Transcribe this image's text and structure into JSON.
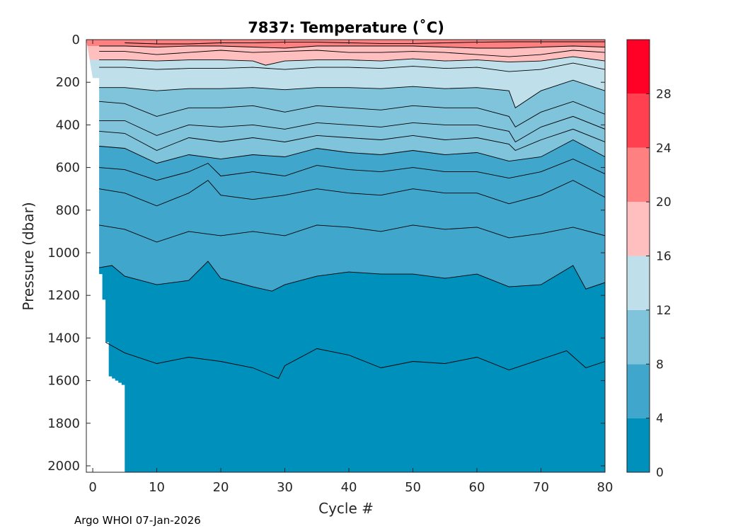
{
  "chart_data": {
    "type": "heatmap",
    "title": "7837:  Temperature (˚C)",
    "xlabel": "Cycle #",
    "ylabel": "Pressure (dbar)",
    "xlim": [
      -1,
      80
    ],
    "ylim": [
      2030,
      0
    ],
    "xticks": [
      0,
      10,
      20,
      30,
      40,
      50,
      60,
      70,
      80
    ],
    "yticks": [
      0,
      200,
      400,
      600,
      800,
      1000,
      1200,
      1400,
      1600,
      1800,
      2000
    ],
    "xtick_labels": [
      "0",
      "10",
      "20",
      "30",
      "40",
      "50",
      "60",
      "70",
      "80"
    ],
    "ytick_labels": [
      "0",
      "200",
      "400",
      "600",
      "800",
      "1000",
      "1200",
      "1400",
      "1600",
      "1800",
      "2000"
    ],
    "colorbar": {
      "range": [
        0,
        32
      ],
      "bins": [
        {
          "from": 0,
          "to": 4,
          "color": "#0090bc"
        },
        {
          "from": 4,
          "to": 8,
          "color": "#40a6cc"
        },
        {
          "from": 8,
          "to": 12,
          "color": "#80c4dc"
        },
        {
          "from": 12,
          "to": 16,
          "color": "#bfe0ea"
        },
        {
          "from": 16,
          "to": 20,
          "color": "#ffbfbf"
        },
        {
          "from": 20,
          "to": 24,
          "color": "#ff8080"
        },
        {
          "from": 24,
          "to": 28,
          "color": "#ff4050"
        },
        {
          "from": 28,
          "to": 32,
          "color": "#ff0026"
        }
      ],
      "ticks": [
        0,
        4,
        8,
        12,
        16,
        20,
        24,
        28
      ],
      "tick_labels": [
        "0",
        "4",
        "8",
        "12",
        "16",
        "20",
        "24",
        "28"
      ]
    },
    "coverage": {
      "cycles": [
        0,
        1,
        1.5,
        2,
        2.5,
        3,
        3.5,
        4,
        4.5,
        5,
        80
      ],
      "max_pressure": [
        180,
        1100,
        1220,
        1420,
        1580,
        1590,
        1600,
        1610,
        1620,
        2030,
        2030
      ]
    },
    "isotherms": [
      {
        "temp": 2,
        "cycles": [
          2,
          5,
          10,
          15,
          20,
          25,
          29,
          30,
          35,
          40,
          45,
          50,
          55,
          60,
          65,
          70,
          74,
          77,
          80
        ],
        "pressure": [
          1420,
          1470,
          1520,
          1490,
          1510,
          1540,
          1590,
          1530,
          1450,
          1480,
          1540,
          1510,
          1520,
          1490,
          1550,
          1500,
          1460,
          1540,
          1510
        ]
      },
      {
        "temp": 4,
        "cycles": [
          1,
          3,
          5,
          10,
          15,
          18,
          20,
          25,
          28,
          30,
          35,
          40,
          45,
          50,
          55,
          60,
          65,
          70,
          75,
          77,
          80
        ],
        "pressure": [
          1070,
          1060,
          1110,
          1150,
          1130,
          1040,
          1120,
          1160,
          1180,
          1150,
          1110,
          1090,
          1100,
          1100,
          1120,
          1100,
          1160,
          1150,
          1060,
          1170,
          1140
        ]
      },
      {
        "temp": 5,
        "cycles": [
          1,
          5,
          10,
          15,
          20,
          25,
          30,
          35,
          40,
          45,
          50,
          55,
          60,
          65,
          70,
          75,
          80
        ],
        "pressure": [
          870,
          890,
          950,
          900,
          920,
          900,
          920,
          870,
          880,
          900,
          870,
          890,
          880,
          930,
          910,
          880,
          920
        ]
      },
      {
        "temp": 6,
        "cycles": [
          1,
          5,
          10,
          15,
          18,
          20,
          25,
          30,
          35,
          40,
          45,
          50,
          55,
          60,
          65,
          70,
          75,
          80
        ],
        "pressure": [
          700,
          720,
          780,
          720,
          660,
          730,
          750,
          730,
          700,
          720,
          730,
          700,
          720,
          720,
          770,
          730,
          660,
          740
        ]
      },
      {
        "temp": 7,
        "cycles": [
          1,
          5,
          10,
          15,
          18,
          20,
          25,
          30,
          35,
          40,
          45,
          50,
          55,
          60,
          65,
          70,
          75,
          80
        ],
        "pressure": [
          600,
          610,
          660,
          620,
          580,
          640,
          620,
          640,
          590,
          610,
          620,
          600,
          620,
          620,
          650,
          620,
          560,
          630
        ]
      },
      {
        "temp": 8,
        "cycles": [
          1,
          5,
          10,
          15,
          20,
          25,
          30,
          35,
          40,
          45,
          50,
          55,
          60,
          65,
          70,
          75,
          80
        ],
        "pressure": [
          500,
          510,
          580,
          540,
          560,
          540,
          550,
          510,
          530,
          540,
          520,
          540,
          530,
          570,
          550,
          470,
          550
        ]
      },
      {
        "temp": 9,
        "cycles": [
          1,
          5,
          10,
          15,
          20,
          25,
          30,
          35,
          40,
          45,
          50,
          55,
          60,
          65,
          66,
          70,
          75,
          80
        ],
        "pressure": [
          430,
          440,
          520,
          460,
          480,
          460,
          480,
          450,
          460,
          470,
          450,
          470,
          460,
          490,
          520,
          470,
          420,
          480
        ]
      },
      {
        "temp": 10,
        "cycles": [
          1,
          5,
          10,
          15,
          20,
          25,
          30,
          35,
          40,
          45,
          50,
          55,
          60,
          65,
          66,
          70,
          75,
          80
        ],
        "pressure": [
          380,
          380,
          450,
          400,
          410,
          400,
          420,
          390,
          400,
          410,
          390,
          400,
          400,
          430,
          480,
          410,
          360,
          420
        ]
      },
      {
        "temp": 11,
        "cycles": [
          1,
          5,
          10,
          15,
          20,
          25,
          30,
          35,
          40,
          45,
          50,
          55,
          60,
          65,
          66,
          70,
          75,
          80
        ],
        "pressure": [
          290,
          300,
          360,
          320,
          320,
          310,
          340,
          310,
          320,
          330,
          310,
          320,
          320,
          360,
          410,
          340,
          290,
          350
        ]
      },
      {
        "temp": 12,
        "cycles": [
          1,
          5,
          10,
          15,
          20,
          25,
          30,
          35,
          40,
          45,
          50,
          55,
          60,
          65,
          66,
          70,
          75,
          80
        ],
        "pressure": [
          225,
          225,
          240,
          230,
          230,
          225,
          235,
          225,
          225,
          230,
          220,
          230,
          225,
          240,
          320,
          240,
          190,
          240
        ]
      },
      {
        "temp": 14,
        "cycles": [
          1,
          5,
          10,
          15,
          20,
          25,
          30,
          35,
          40,
          45,
          50,
          55,
          60,
          65,
          70,
          75,
          80
        ],
        "pressure": [
          130,
          130,
          140,
          135,
          135,
          130,
          140,
          130,
          130,
          135,
          125,
          135,
          130,
          150,
          140,
          110,
          140
        ]
      },
      {
        "temp": 16,
        "cycles": [
          1,
          5,
          10,
          15,
          20,
          25,
          27,
          30,
          35,
          40,
          45,
          50,
          55,
          60,
          65,
          70,
          75,
          80
        ],
        "pressure": [
          95,
          95,
          100,
          95,
          95,
          100,
          120,
          100,
          95,
          95,
          100,
          90,
          100,
          95,
          105,
          100,
          80,
          100
        ]
      },
      {
        "temp": 18,
        "cycles": [
          1,
          5,
          10,
          15,
          20,
          25,
          30,
          35,
          40,
          45,
          50,
          55,
          60,
          65,
          70,
          75,
          80
        ],
        "pressure": [
          55,
          55,
          70,
          60,
          50,
          60,
          55,
          50,
          60,
          60,
          55,
          60,
          70,
          80,
          70,
          50,
          60
        ]
      },
      {
        "temp": 20,
        "cycles": [
          1,
          5,
          10,
          15,
          20,
          25,
          30,
          35,
          40,
          45,
          50,
          55,
          60,
          65,
          70,
          75,
          80
        ],
        "pressure": [
          30,
          30,
          35,
          30,
          30,
          35,
          40,
          30,
          30,
          30,
          30,
          35,
          40,
          40,
          35,
          30,
          35
        ]
      },
      {
        "temp": 22,
        "cycles": [
          5,
          10,
          15,
          20,
          25,
          30,
          35,
          40,
          45,
          50,
          55,
          60,
          65,
          75,
          80
        ],
        "pressure": [
          15,
          20,
          20,
          15,
          15,
          12,
          12,
          15,
          18,
          18,
          15,
          12,
          10,
          10,
          10
        ]
      }
    ]
  },
  "footer": {
    "credit": "Argo WHOI 07-Jan-2026"
  }
}
